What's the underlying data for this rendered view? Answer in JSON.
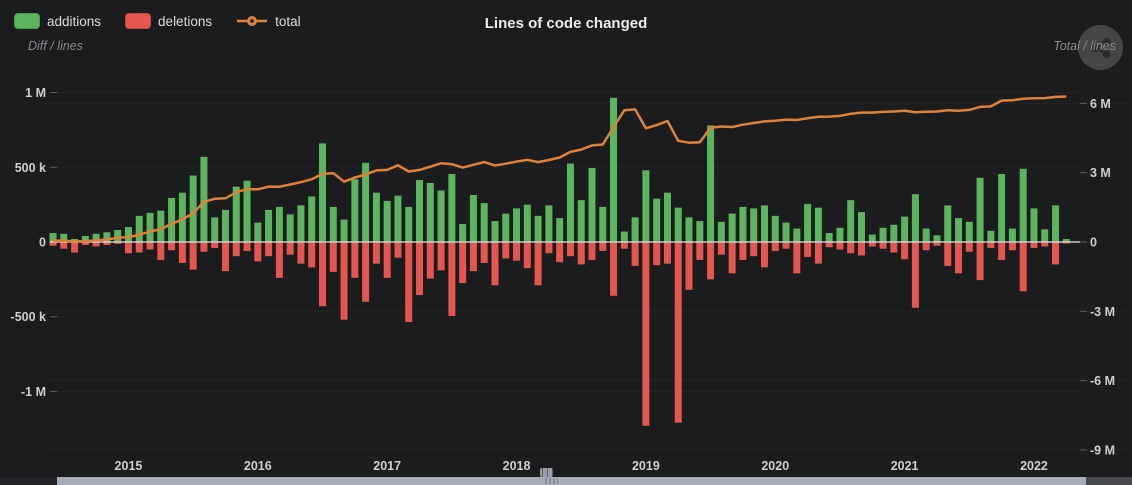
{
  "header": {
    "title": "Lines of code changed",
    "legend": [
      {
        "label": "additions",
        "color": "#5cb55e"
      },
      {
        "label": "deletions",
        "color": "#e4564f"
      },
      {
        "label": "total",
        "color": "#e0813a"
      }
    ],
    "left_axis_caption": "Diff / lines",
    "right_axis_caption": "Total / lines",
    "menu_icon": "share-icon"
  },
  "colors": {
    "background": "#1b1c1e",
    "additions": "#5cb55e",
    "deletions": "#e4564f",
    "total_line": "#e0813a",
    "grid": "#37383c",
    "zero_line": "#d9d9d9",
    "axis_text": "#cfcfcf",
    "scrollbar_handle": "#a7adb6"
  },
  "chart_data": {
    "type": "bar",
    "subtype": "column+line combo, monthly",
    "title": "Lines of code changed",
    "legend_position": "top-left",
    "grid": "horizontal dashed",
    "months": [
      "2014-06",
      "2014-07",
      "2014-08",
      "2014-09",
      "2014-10",
      "2014-11",
      "2014-12",
      "2015-01",
      "2015-02",
      "2015-03",
      "2015-04",
      "2015-05",
      "2015-06",
      "2015-07",
      "2015-08",
      "2015-09",
      "2015-10",
      "2015-11",
      "2015-12",
      "2016-01",
      "2016-02",
      "2016-03",
      "2016-04",
      "2016-05",
      "2016-06",
      "2016-07",
      "2016-08",
      "2016-09",
      "2016-10",
      "2016-11",
      "2016-12",
      "2017-01",
      "2017-02",
      "2017-03",
      "2017-04",
      "2017-05",
      "2017-06",
      "2017-07",
      "2017-08",
      "2017-09",
      "2017-10",
      "2017-11",
      "2017-12",
      "2018-01",
      "2018-02",
      "2018-03",
      "2018-04",
      "2018-05",
      "2018-06",
      "2018-07",
      "2018-08",
      "2018-09",
      "2018-10",
      "2018-11",
      "2018-12",
      "2019-01",
      "2019-02",
      "2019-03",
      "2019-04",
      "2019-05",
      "2019-06",
      "2019-07",
      "2019-08",
      "2019-09",
      "2019-10",
      "2019-11",
      "2019-12",
      "2020-01",
      "2020-02",
      "2020-03",
      "2020-04",
      "2020-05",
      "2020-06",
      "2020-07",
      "2020-08",
      "2020-09",
      "2020-10",
      "2020-11",
      "2020-12",
      "2021-01",
      "2021-02",
      "2021-03",
      "2021-04",
      "2021-05",
      "2021-06",
      "2021-07",
      "2021-08",
      "2021-09",
      "2021-10",
      "2021-11",
      "2021-12",
      "2022-01",
      "2022-02",
      "2022-03",
      "2022-04"
    ],
    "x_axis": {
      "year_tick_labels": [
        "2015",
        "2016",
        "2017",
        "2018",
        "2019",
        "2020",
        "2021",
        "2022"
      ]
    },
    "left_axis": {
      "caption": "Diff / lines",
      "tick_labels": [
        "1 M",
        "500 k",
        "0",
        "-500 k",
        "-1 M"
      ],
      "tick_values_k": [
        1000,
        500,
        0,
        -500,
        -1000
      ],
      "range_k": [
        1150,
        -1420
      ]
    },
    "right_axis": {
      "caption": "Total / lines",
      "tick_labels": [
        "6 M",
        "3 M",
        "0",
        "-3 M",
        "-6 M",
        "-9 M"
      ],
      "tick_values_M": [
        6,
        3,
        0,
        -3,
        -6,
        -9
      ],
      "range_M": [
        7.4,
        -9.1
      ]
    },
    "series": [
      {
        "name": "additions",
        "type": "column",
        "axis": "left",
        "color": "#5cb55e",
        "values_k": [
          60,
          55,
          20,
          40,
          55,
          65,
          80,
          100,
          175,
          195,
          210,
          295,
          330,
          445,
          570,
          165,
          215,
          370,
          410,
          130,
          215,
          235,
          185,
          245,
          305,
          660,
          235,
          150,
          420,
          530,
          330,
          275,
          310,
          235,
          415,
          395,
          345,
          455,
          120,
          315,
          260,
          140,
          190,
          225,
          250,
          175,
          245,
          160,
          525,
          280,
          495,
          235,
          965,
          70,
          165,
          480,
          290,
          330,
          230,
          165,
          140,
          780,
          135,
          190,
          235,
          225,
          245,
          175,
          130,
          90,
          255,
          230,
          60,
          95,
          280,
          200,
          50,
          95,
          115,
          170,
          320,
          90,
          45,
          245,
          160,
          135,
          430,
          75,
          455,
          90,
          490,
          225,
          85,
          245,
          20
        ]
      },
      {
        "name": "deletions",
        "type": "column",
        "axis": "left",
        "color": "#e4564f",
        "values_k": [
          -25,
          -45,
          -70,
          -20,
          -30,
          -20,
          -12,
          -75,
          -70,
          -50,
          -120,
          -55,
          -140,
          -185,
          -65,
          -40,
          -195,
          -95,
          -60,
          -130,
          -95,
          -240,
          -85,
          -145,
          -170,
          -430,
          -200,
          -520,
          -240,
          -400,
          -145,
          -240,
          -105,
          -535,
          -355,
          -245,
          -190,
          -495,
          -275,
          -195,
          -140,
          -290,
          -110,
          -125,
          -175,
          -290,
          -75,
          -135,
          -95,
          -150,
          -120,
          -60,
          -360,
          -45,
          -160,
          -1230,
          -155,
          -145,
          -1210,
          -320,
          -120,
          -250,
          -85,
          -210,
          -120,
          -95,
          -170,
          -60,
          -45,
          -210,
          -100,
          -145,
          -35,
          -50,
          -75,
          -90,
          -30,
          -45,
          -70,
          -115,
          -440,
          -55,
          -25,
          -160,
          -210,
          -65,
          -255,
          -40,
          -120,
          -55,
          -330,
          -40,
          -30,
          -150,
          -10
        ]
      },
      {
        "name": "total",
        "type": "line",
        "axis": "right",
        "color": "#e0813a",
        "values_M": [
          0.05,
          0.06,
          0.02,
          0.04,
          0.07,
          0.11,
          0.18,
          0.21,
          0.31,
          0.46,
          0.55,
          0.79,
          0.98,
          1.24,
          1.74,
          1.87,
          1.89,
          2.16,
          2.28,
          2.28,
          2.4,
          2.39,
          2.49,
          2.59,
          2.72,
          2.95,
          2.98,
          2.61,
          2.79,
          2.92,
          3.1,
          3.12,
          3.32,
          3.05,
          3.12,
          3.26,
          3.41,
          3.37,
          3.22,
          3.34,
          3.46,
          3.31,
          3.39,
          3.48,
          3.56,
          3.46,
          3.55,
          3.66,
          3.9,
          4.0,
          4.18,
          4.22,
          4.98,
          5.7,
          5.74,
          4.92,
          5.06,
          5.24,
          4.38,
          4.3,
          4.32,
          4.95,
          5.0,
          4.98,
          5.08,
          5.15,
          5.22,
          5.25,
          5.3,
          5.28,
          5.36,
          5.42,
          5.43,
          5.46,
          5.55,
          5.6,
          5.6,
          5.63,
          5.65,
          5.68,
          5.62,
          5.64,
          5.65,
          5.7,
          5.68,
          5.72,
          5.85,
          5.87,
          6.12,
          6.14,
          6.2,
          6.22,
          6.23,
          6.28,
          6.3
        ]
      }
    ]
  }
}
